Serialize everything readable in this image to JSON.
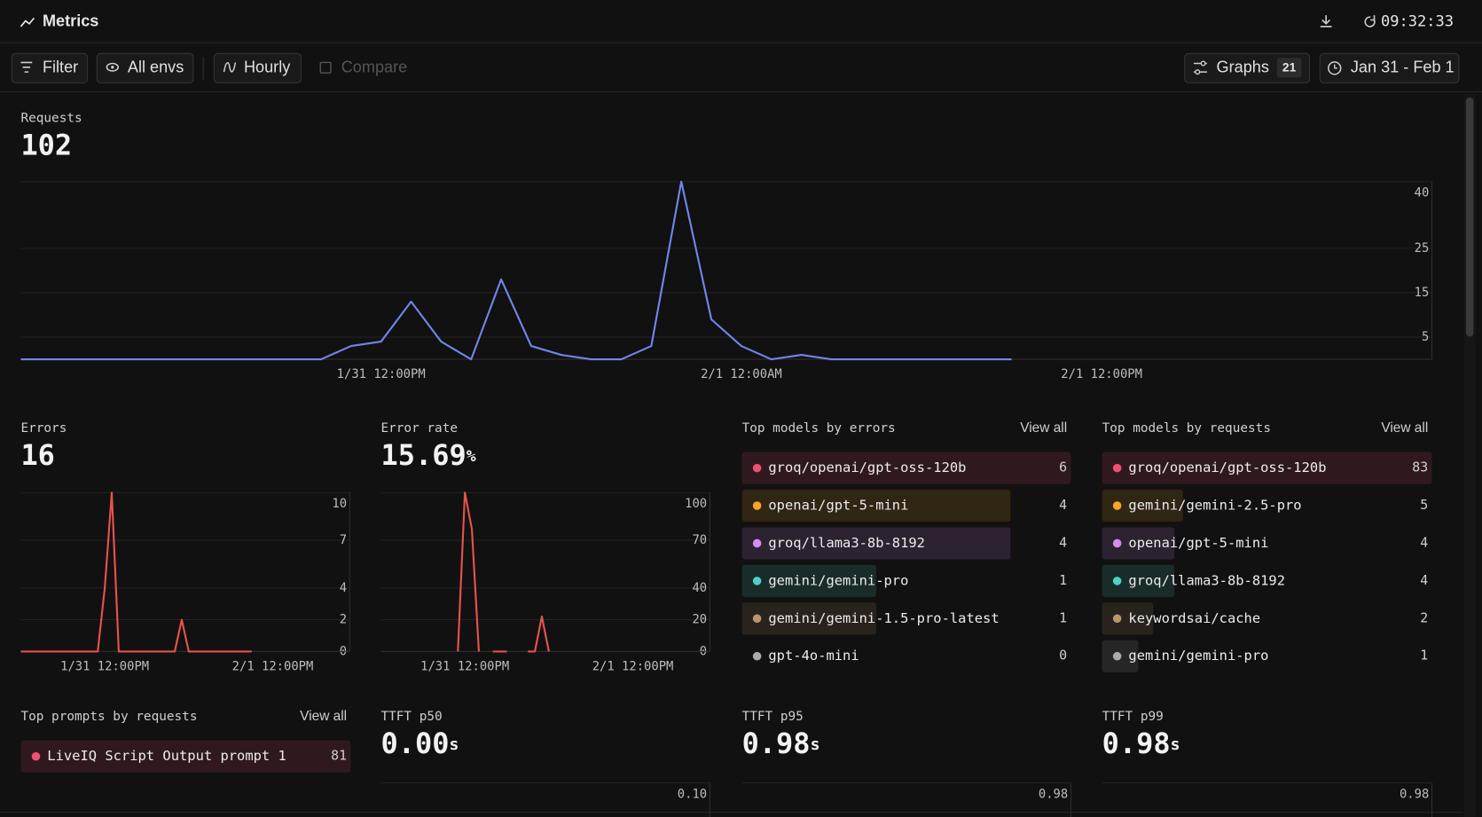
{
  "header": {
    "title": "Metrics",
    "time": "09:32:33"
  },
  "toolbar": {
    "filter": "Filter",
    "envs": "All envs",
    "interval": "Hourly",
    "compare": "Compare",
    "graphs": "Graphs",
    "graphs_count": 21,
    "date_range": "Jan 31 - Feb 1"
  },
  "chart_data": [
    {
      "type": "line",
      "title": "Requests",
      "value": 102,
      "color": "#6f86e8",
      "grid": true,
      "ylim": [
        0,
        40
      ],
      "yticks": [
        5,
        15,
        25,
        40
      ],
      "categories": [
        null,
        null,
        null,
        null,
        null,
        null,
        null,
        null,
        null,
        null,
        null,
        null,
        "1/31 12:00PM",
        null,
        null,
        null,
        null,
        null,
        null,
        null,
        null,
        null,
        null,
        null,
        "2/1 12:00AM",
        null,
        null,
        null,
        null,
        null,
        null,
        null,
        null,
        null,
        null,
        null,
        "2/1 12:00PM",
        null,
        null,
        null,
        null,
        null,
        null,
        null,
        null,
        null,
        null,
        null
      ],
      "values": [
        0,
        0,
        0,
        0,
        0,
        0,
        0,
        0,
        0,
        0,
        0,
        3,
        4,
        13,
        4,
        0,
        18,
        3,
        1,
        0,
        0,
        3,
        40,
        9,
        3,
        0,
        1,
        0,
        0,
        0,
        0,
        0,
        0,
        0,
        null,
        null,
        null,
        null,
        null,
        null,
        null,
        null,
        null,
        null,
        null,
        null,
        null,
        null
      ]
    },
    {
      "type": "line",
      "title": "Errors",
      "value": 16,
      "color": "#e5534b",
      "grid": true,
      "ylim": [
        0,
        10
      ],
      "yticks": [
        0,
        2,
        4,
        7,
        10
      ],
      "categories": [
        null,
        null,
        null,
        null,
        null,
        null,
        null,
        null,
        null,
        null,
        null,
        null,
        "1/31 12:00PM",
        null,
        null,
        null,
        null,
        null,
        null,
        null,
        null,
        null,
        null,
        null,
        null,
        null,
        null,
        null,
        null,
        null,
        null,
        null,
        null,
        null,
        null,
        null,
        "2/1 12:00PM",
        null,
        null,
        null,
        null,
        null,
        null,
        null,
        null,
        null,
        null,
        null
      ],
      "values": [
        0,
        0,
        0,
        0,
        0,
        0,
        0,
        0,
        0,
        0,
        0,
        0,
        4,
        10,
        0,
        0,
        0,
        0,
        0,
        0,
        0,
        0,
        0,
        2,
        0,
        0,
        0,
        0,
        0,
        0,
        0,
        0,
        0,
        0,
        null,
        null,
        null,
        null,
        null,
        null,
        null,
        null,
        null,
        null,
        null,
        null,
        null,
        null
      ]
    },
    {
      "type": "line",
      "title": "Error rate",
      "value": "15.69",
      "unit": "%",
      "color": "#e5534b",
      "grid": true,
      "ylim": [
        0,
        100
      ],
      "yticks": [
        0,
        20,
        40,
        70,
        100
      ],
      "categories": [
        null,
        null,
        null,
        null,
        null,
        null,
        null,
        null,
        null,
        null,
        null,
        null,
        "1/31 12:00PM",
        null,
        null,
        null,
        null,
        null,
        null,
        null,
        null,
        null,
        null,
        null,
        null,
        null,
        null,
        null,
        null,
        null,
        null,
        null,
        null,
        null,
        null,
        null,
        "2/1 12:00PM",
        null,
        null,
        null,
        null,
        null,
        null,
        null,
        null,
        null,
        null,
        null
      ],
      "values": [
        null,
        null,
        null,
        null,
        null,
        null,
        null,
        null,
        null,
        null,
        null,
        0,
        100,
        77,
        0,
        null,
        0,
        0,
        0,
        null,
        null,
        0,
        0,
        22,
        0,
        null,
        0,
        null,
        null,
        null,
        null,
        null,
        null,
        null,
        null,
        null,
        null,
        null,
        null,
        null,
        null,
        null,
        null,
        null,
        null,
        null,
        null,
        null
      ]
    },
    {
      "type": "line",
      "title": "TTFT p50",
      "value": "0.00",
      "unit": "s",
      "grid": true,
      "ylim": [
        0,
        0.1
      ],
      "yticks": [
        {
          "value": 0.1,
          "label": "0.10"
        }
      ]
    },
    {
      "type": "line",
      "title": "TTFT p95",
      "value": "0.98",
      "unit": "s",
      "grid": true,
      "ylim": [
        0,
        0.98
      ],
      "yticks": [
        0.98
      ]
    },
    {
      "type": "line",
      "title": "TTFT p99",
      "value": "0.98",
      "unit": "s",
      "grid": true,
      "ylim": [
        0,
        0.98
      ],
      "yticks": [
        0.98
      ]
    }
  ],
  "lists": [
    {
      "title": "Top models by errors",
      "action": "View all",
      "items": [
        {
          "name": "groq/openai/gpt-oss-120b",
          "value": 6,
          "color": "#f0506e"
        },
        {
          "name": "openai/gpt-5-mini",
          "value": 4,
          "color": "#f5a623"
        },
        {
          "name": "groq/llama3-8b-8192",
          "value": 4,
          "color": "#d68cf0"
        },
        {
          "name": "gemini/gemini-pro",
          "value": 1,
          "color": "#4fd1c5"
        },
        {
          "name": "gemini/gemini-1.5-pro-latest",
          "value": 1,
          "color": "#b8956a"
        },
        {
          "name": "gpt-4o-mini",
          "value": 0,
          "color": "#aaaaaa"
        }
      ]
    },
    {
      "title": "Top models by requests",
      "action": "View all",
      "items": [
        {
          "name": "groq/openai/gpt-oss-120b",
          "value": 83,
          "color": "#f0506e"
        },
        {
          "name": "gemini/gemini-2.5-pro",
          "value": 5,
          "color": "#f5a623"
        },
        {
          "name": "openai/gpt-5-mini",
          "value": 4,
          "color": "#d68cf0"
        },
        {
          "name": "groq/llama3-8b-8192",
          "value": 4,
          "color": "#4fd1c5"
        },
        {
          "name": "keywordsai/cache",
          "value": 2,
          "color": "#b8956a"
        },
        {
          "name": "gemini/gemini-pro",
          "value": 1,
          "color": "#aaaaaa"
        }
      ]
    },
    {
      "title": "Top prompts by requests",
      "action": "View all",
      "items": [
        {
          "name": "LiveIQ Script Output prompt 1",
          "value": 81,
          "color": "#f0506e"
        }
      ]
    }
  ]
}
